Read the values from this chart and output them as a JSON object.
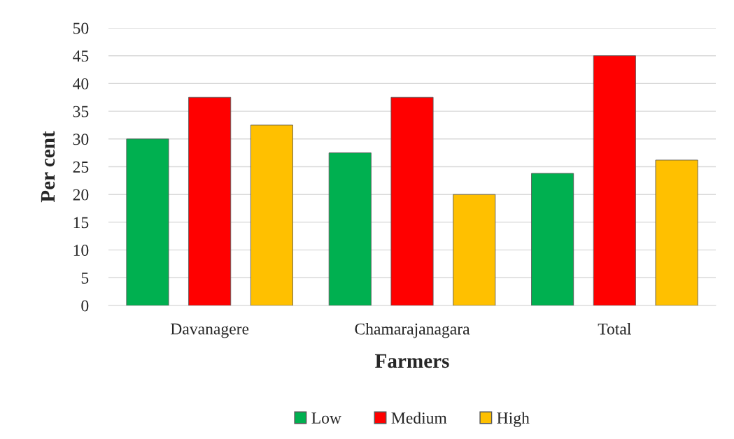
{
  "chart_data": {
    "type": "bar",
    "xlabel": "Farmers",
    "ylabel": "Per cent",
    "categories": [
      "Davanagere",
      "Chamarajanagara",
      "Total"
    ],
    "series": [
      {
        "name": "Low",
        "color": "#00b050",
        "values": [
          30,
          27.5,
          23.8
        ]
      },
      {
        "name": "Medium",
        "color": "#ff0000",
        "values": [
          37.5,
          37.5,
          45
        ]
      },
      {
        "name": "High",
        "color": "#ffc000",
        "values": [
          32.5,
          20,
          26.2
        ]
      }
    ],
    "ylim": [
      0,
      50
    ],
    "yticks": [
      0,
      5,
      10,
      15,
      20,
      25,
      30,
      35,
      40,
      45,
      50
    ],
    "grid": "y",
    "legend": "bottom"
  }
}
